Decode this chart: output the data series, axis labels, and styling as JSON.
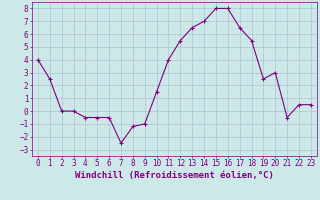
{
  "x": [
    0,
    1,
    2,
    3,
    4,
    5,
    6,
    7,
    8,
    9,
    10,
    11,
    12,
    13,
    14,
    15,
    16,
    17,
    18,
    19,
    20,
    21,
    22,
    23
  ],
  "y": [
    4.0,
    2.5,
    0.0,
    0.0,
    -0.5,
    -0.5,
    -0.5,
    -2.5,
    -1.2,
    -1.0,
    1.5,
    4.0,
    5.5,
    6.5,
    7.0,
    8.0,
    8.0,
    6.5,
    5.5,
    2.5,
    3.0,
    -0.5,
    0.5,
    0.5
  ],
  "line_color": "#800080",
  "marker": "+",
  "marker_size": 3,
  "bg_color": "#cce8e8",
  "grid_color": "#aabbcc",
  "xlabel": "Windchill (Refroidissement éolien,°C)",
  "xlim_min": -0.5,
  "xlim_max": 23.5,
  "ylim_min": -3.5,
  "ylim_max": 8.5,
  "yticks": [
    -3,
    -2,
    -1,
    0,
    1,
    2,
    3,
    4,
    5,
    6,
    7,
    8
  ],
  "xticks": [
    0,
    1,
    2,
    3,
    4,
    5,
    6,
    7,
    8,
    9,
    10,
    11,
    12,
    13,
    14,
    15,
    16,
    17,
    18,
    19,
    20,
    21,
    22,
    23
  ],
  "xlabel_fontsize": 6.5,
  "tick_fontsize": 5.5,
  "tick_color": "#800080",
  "axis_label_color": "#800080",
  "border_color": "#800080",
  "linewidth": 0.8,
  "markeredgewidth": 0.8
}
